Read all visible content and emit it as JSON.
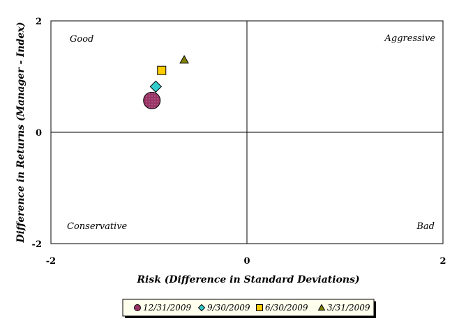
{
  "chart_data": {
    "type": "scatter",
    "xlabel": "Risk (Difference in Standard Deviations)",
    "ylabel": "Difference in Returns (Manager - Index)",
    "xlim": [
      -2,
      2
    ],
    "ylim": [
      -2,
      2
    ],
    "x_ticks": [
      "-2",
      "0",
      "2"
    ],
    "y_ticks": [
      "2",
      "0",
      "-2"
    ],
    "quadrant_labels": {
      "top_left": "Good",
      "top_right": "Aggressive",
      "bottom_left": "Conservative",
      "bottom_right": "Bad"
    },
    "legend_position": "bottom-center",
    "series": [
      {
        "name": "12/31/2009",
        "marker": "circle",
        "color": "#993366",
        "size": "large",
        "x": -0.97,
        "y": 0.57
      },
      {
        "name": "9/30/2009",
        "marker": "diamond",
        "color": "#33CCCC",
        "size": "medium",
        "x": -0.93,
        "y": 0.82
      },
      {
        "name": "6/30/2009",
        "marker": "square",
        "color": "#FFCC00",
        "size": "small",
        "x": -0.87,
        "y": 1.11
      },
      {
        "name": "3/31/2009",
        "marker": "triangle",
        "color": "#808000",
        "size": "small",
        "x": -0.64,
        "y": 1.3
      }
    ]
  }
}
